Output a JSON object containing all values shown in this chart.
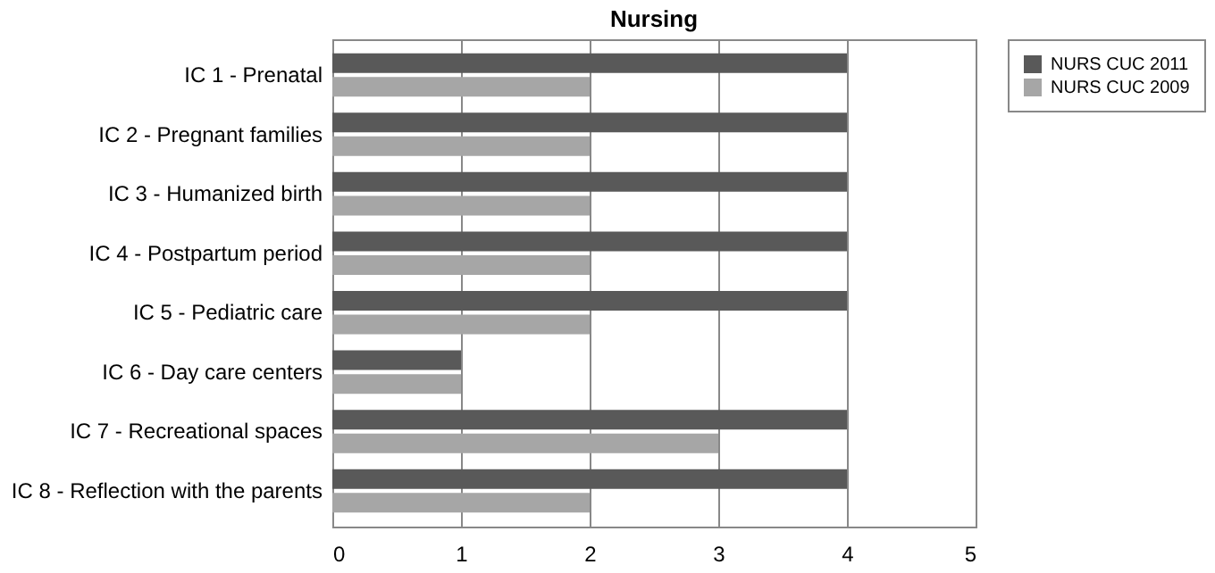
{
  "chart_data": {
    "type": "bar",
    "orientation": "horizontal",
    "title": "Nursing",
    "categories": [
      "IC 1 - Prenatal",
      "IC 2 - Pregnant families",
      "IC 3 - Humanized birth",
      "IC 4 - Postpartum period",
      "IC 5 - Pediatric care",
      "IC 6 - Day care centers",
      "IC 7 - Recreational spaces",
      "IC 8 - Reflection with the parents"
    ],
    "series": [
      {
        "name": "NURS CUC 2011",
        "color": "#595959",
        "values": [
          4,
          4,
          4,
          4,
          4,
          1,
          4,
          4
        ]
      },
      {
        "name": "NURS CUC 2009",
        "color": "#a6a6a6",
        "values": [
          2,
          2,
          2,
          2,
          2,
          1,
          3,
          2
        ]
      }
    ],
    "xlim": [
      0,
      5
    ],
    "xticks": [
      0,
      1,
      2,
      3,
      4,
      5
    ],
    "grid": "x",
    "legend": "right"
  }
}
